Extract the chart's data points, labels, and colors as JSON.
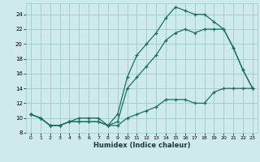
{
  "xlabel": "Humidex (Indice chaleur)",
  "background_color": "#ceeaea",
  "grid_color": "#a0c8c8",
  "line_color": "#1a7060",
  "xlim": [
    -0.5,
    23.5
  ],
  "ylim": [
    8,
    25.5
  ],
  "yticks": [
    8,
    10,
    12,
    14,
    16,
    18,
    20,
    22,
    24
  ],
  "xticks": [
    0,
    1,
    2,
    3,
    4,
    5,
    6,
    7,
    8,
    9,
    10,
    11,
    12,
    13,
    14,
    15,
    16,
    17,
    18,
    19,
    20,
    21,
    22,
    23
  ],
  "line1_x": [
    0,
    1,
    2,
    3,
    4,
    5,
    6,
    7,
    8,
    9,
    10,
    11,
    12,
    13,
    14,
    15,
    16,
    17,
    18,
    19,
    20,
    21,
    22,
    23
  ],
  "line1_y": [
    10.5,
    10.0,
    9.0,
    9.0,
    9.5,
    10.0,
    10.0,
    10.0,
    9.0,
    10.5,
    15.5,
    18.5,
    20.0,
    21.5,
    23.5,
    25.0,
    24.5,
    24.0,
    24.0,
    23.0,
    22.0,
    19.5,
    16.5,
    14.0
  ],
  "line2_x": [
    0,
    1,
    2,
    3,
    4,
    5,
    6,
    7,
    8,
    9,
    10,
    11,
    12,
    13,
    14,
    15,
    16,
    17,
    18,
    19,
    20,
    21,
    22,
    23
  ],
  "line2_y": [
    10.5,
    10.0,
    9.0,
    9.0,
    9.5,
    9.5,
    9.5,
    9.5,
    9.0,
    9.5,
    14.0,
    15.5,
    17.0,
    18.5,
    20.5,
    21.5,
    22.0,
    21.5,
    22.0,
    22.0,
    22.0,
    19.5,
    16.5,
    14.0
  ],
  "line3_x": [
    0,
    1,
    2,
    3,
    4,
    5,
    6,
    7,
    8,
    9,
    10,
    11,
    12,
    13,
    14,
    15,
    16,
    17,
    18,
    19,
    20,
    21,
    22,
    23
  ],
  "line3_y": [
    10.5,
    10.0,
    9.0,
    9.0,
    9.5,
    9.5,
    9.5,
    9.5,
    9.0,
    9.0,
    10.0,
    10.5,
    11.0,
    11.5,
    12.5,
    12.5,
    12.5,
    12.0,
    12.0,
    13.5,
    14.0,
    14.0,
    14.0,
    14.0
  ]
}
